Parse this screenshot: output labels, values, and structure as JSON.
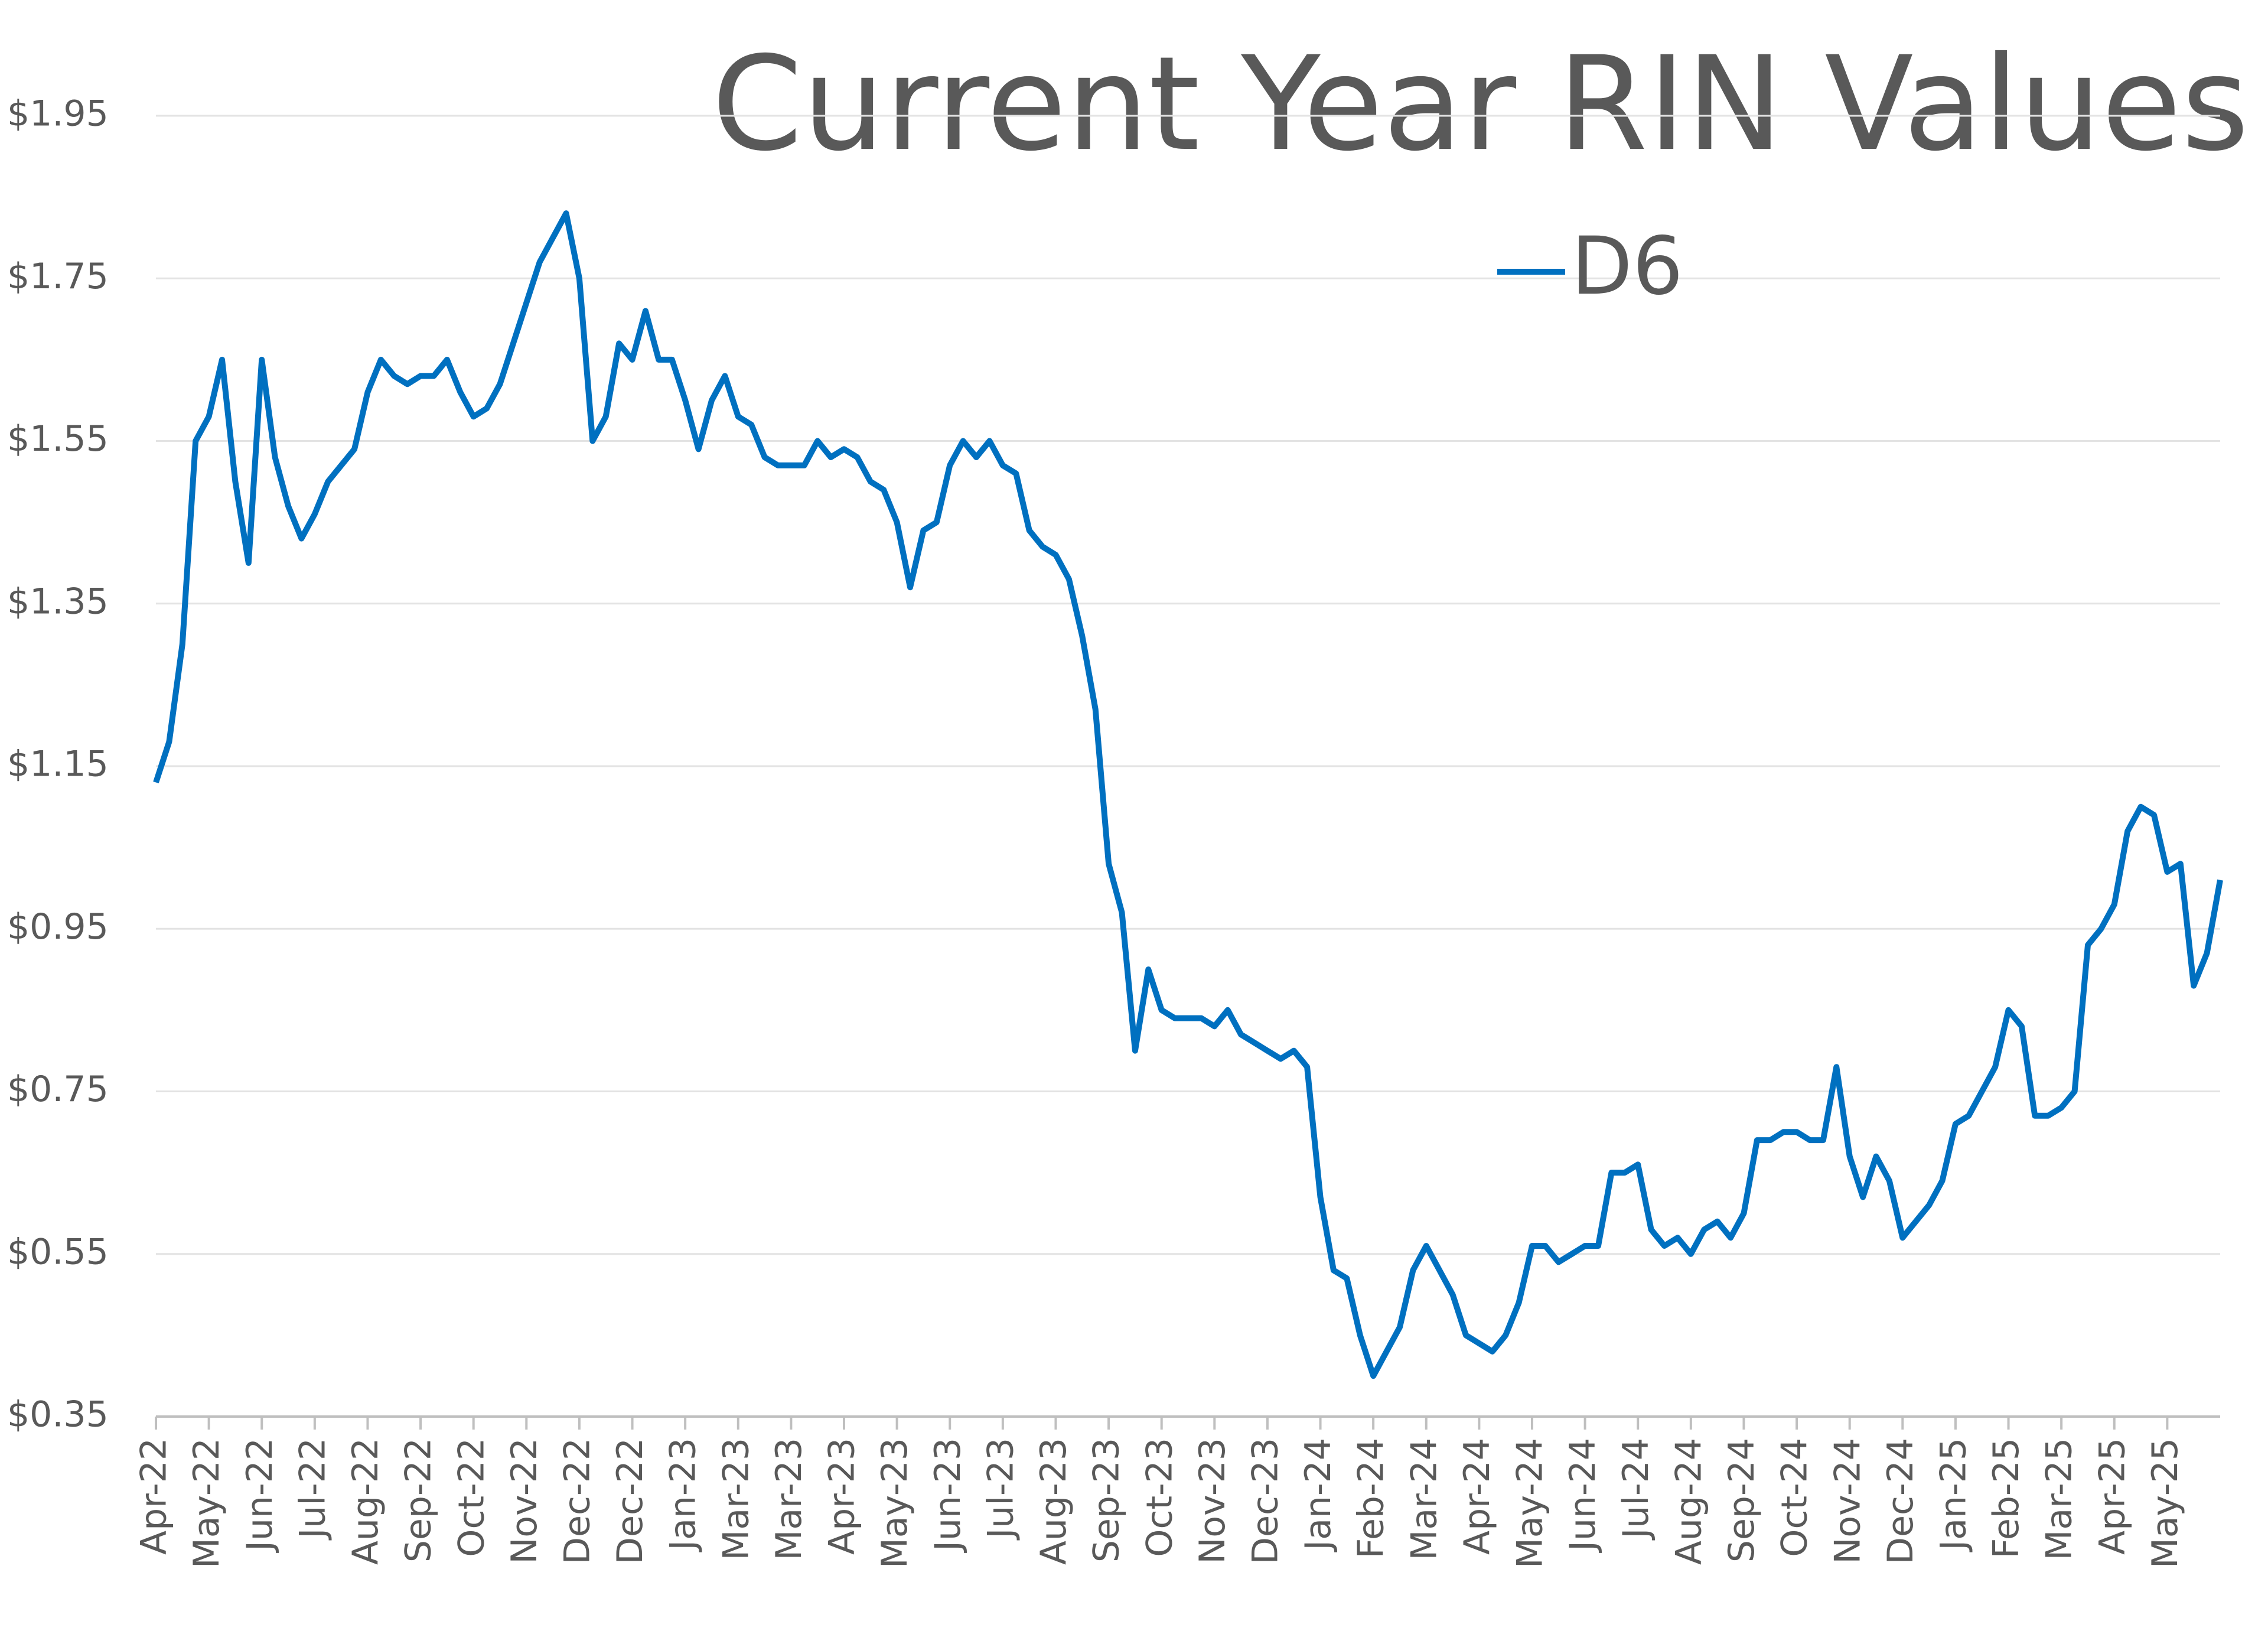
{
  "chart_data": {
    "type": "line",
    "title": "Current Year RIN Values",
    "categories": [
      "Apr-22",
      null,
      null,
      null,
      "May-22",
      null,
      null,
      null,
      "Jun-22",
      null,
      null,
      null,
      "Jul-22",
      null,
      null,
      null,
      "Aug-22",
      null,
      null,
      null,
      "Sep-22",
      null,
      null,
      null,
      "Oct-22",
      null,
      null,
      null,
      "Nov-22",
      null,
      null,
      null,
      "Dec-22",
      null,
      null,
      null,
      "Dec-22",
      null,
      null,
      null,
      "Jan-23",
      null,
      null,
      null,
      "Mar-23",
      null,
      null,
      null,
      "Mar-23",
      null,
      null,
      null,
      "Apr-23",
      null,
      null,
      null,
      "May-23",
      null,
      null,
      null,
      "Jun-23",
      null,
      null,
      null,
      "Jul-23",
      null,
      null,
      null,
      "Aug-23",
      null,
      null,
      null,
      "Sep-23",
      null,
      null,
      null,
      "Oct-23",
      null,
      null,
      null,
      "Nov-23",
      null,
      null,
      null,
      "Dec-23",
      null,
      null,
      null,
      "Jan-24",
      null,
      null,
      null,
      "Feb-24",
      null,
      null,
      null,
      "Mar-24",
      null,
      null,
      null,
      "Apr-24",
      null,
      null,
      null,
      "May-24",
      null,
      null,
      null,
      "Jun-24",
      null,
      null,
      null,
      "Jul-24",
      null,
      null,
      null,
      "Aug-24",
      null,
      null,
      null,
      "Sep-24",
      null,
      null,
      null,
      "Oct-24",
      null,
      null,
      null,
      "Nov-24",
      null,
      null,
      null,
      "Dec-24",
      null,
      null,
      null,
      "Jan-25",
      null,
      null,
      null,
      "Feb-25",
      null,
      null,
      null,
      "Mar-25",
      null,
      null,
      null,
      "Apr-25",
      null,
      null,
      null,
      "May-25",
      null,
      null,
      null,
      null
    ],
    "series": [
      {
        "name": "D6",
        "color": "#0070c0",
        "values": [
          1.13,
          1.18,
          1.3,
          1.55,
          1.58,
          1.65,
          1.5,
          1.4,
          1.65,
          1.53,
          1.47,
          1.43,
          1.46,
          1.5,
          1.52,
          1.54,
          1.61,
          1.65,
          1.63,
          1.62,
          1.63,
          1.63,
          1.65,
          1.61,
          1.58,
          1.59,
          1.62,
          1.67,
          1.72,
          1.77,
          1.8,
          1.83,
          1.75,
          1.55,
          1.58,
          1.67,
          1.65,
          1.71,
          1.65,
          1.65,
          1.6,
          1.54,
          1.6,
          1.63,
          1.58,
          1.57,
          1.53,
          1.52,
          1.52,
          1.52,
          1.55,
          1.53,
          1.54,
          1.53,
          1.5,
          1.49,
          1.45,
          1.37,
          1.44,
          1.45,
          1.52,
          1.55,
          1.53,
          1.55,
          1.52,
          1.51,
          1.44,
          1.42,
          1.41,
          1.38,
          1.31,
          1.22,
          1.03,
          0.97,
          0.8,
          0.9,
          0.85,
          0.84,
          0.84,
          0.84,
          0.83,
          0.85,
          0.82,
          0.81,
          0.8,
          0.79,
          0.8,
          0.78,
          0.62,
          0.53,
          0.52,
          0.45,
          0.4,
          0.43,
          0.46,
          0.53,
          0.56,
          0.53,
          0.5,
          0.45,
          0.44,
          0.43,
          0.45,
          0.49,
          0.56,
          0.56,
          0.54,
          0.55,
          0.56,
          0.56,
          0.65,
          0.65,
          0.66,
          0.58,
          0.56,
          0.57,
          0.55,
          0.58,
          0.59,
          0.57,
          0.6,
          0.69,
          0.69,
          0.7,
          0.7,
          0.69,
          0.69,
          0.78,
          0.67,
          0.62,
          0.67,
          0.64,
          0.57,
          0.59,
          0.61,
          0.64,
          0.71,
          0.72,
          0.75,
          0.78,
          0.85,
          0.83,
          0.72,
          0.72,
          0.73,
          0.75,
          0.93,
          0.95,
          0.98,
          1.07,
          1.1,
          1.09,
          1.02,
          1.03,
          0.88,
          0.92,
          1.01
        ]
      }
    ],
    "ylim": [
      0.35,
      1.95
    ],
    "yticks": [
      {
        "value": 0.35,
        "label": "$0.35"
      },
      {
        "value": 0.55,
        "label": "$0.55"
      },
      {
        "value": 0.75,
        "label": "$0.75"
      },
      {
        "value": 0.95,
        "label": "$0.95"
      },
      {
        "value": 1.15,
        "label": "$1.15"
      },
      {
        "value": 1.35,
        "label": "$1.35"
      },
      {
        "value": 1.55,
        "label": "$1.55"
      },
      {
        "value": 1.75,
        "label": "$1.75"
      },
      {
        "value": 1.95,
        "label": "$1.95"
      }
    ],
    "grid": true,
    "legend": "top"
  }
}
